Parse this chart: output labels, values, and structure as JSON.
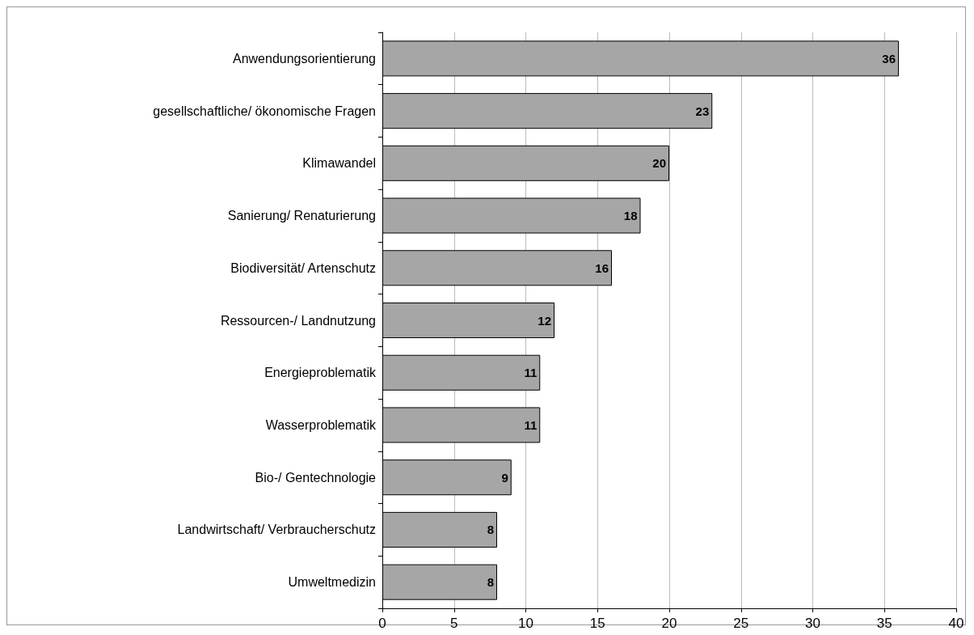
{
  "chart_data": {
    "type": "bar",
    "orientation": "horizontal",
    "categories": [
      "Anwendungsorientierung",
      "gesellschaftliche/ ökonomische Fragen",
      "Klimawandel",
      "Sanierung/ Renaturierung",
      "Biodiversität/ Artenschutz",
      "Ressourcen-/ Landnutzung",
      "Energieproblematik",
      "Wasserproblematik",
      "Bio-/ Gentechnologie",
      "Landwirtschaft/ Verbraucherschutz",
      "Umweltmedizin"
    ],
    "values": [
      36,
      23,
      20,
      18,
      16,
      12,
      11,
      11,
      9,
      8,
      8
    ],
    "color": "#a6a6a6",
    "xlim": [
      0,
      40
    ],
    "xticks": [
      0,
      5,
      10,
      15,
      20,
      25,
      30,
      35,
      40
    ],
    "grid": "x",
    "data_labels": true
  }
}
